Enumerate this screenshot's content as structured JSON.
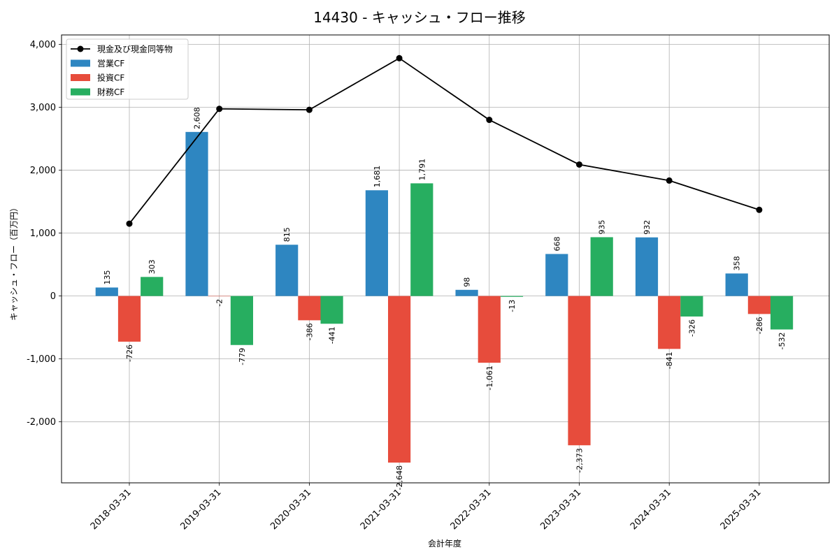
{
  "chart_data": {
    "type": "bar",
    "title": "14430 - キャッシュ・フロー推移",
    "xlabel": "会計年度",
    "ylabel": "キャッシュ・フロー（百万円）",
    "categories": [
      "2018-03-31",
      "2019-03-31",
      "2020-03-31",
      "2021-03-31",
      "2022-03-31",
      "2023-03-31",
      "2024-03-31",
      "2025-03-31"
    ],
    "ylim": [
      -2970,
      4150
    ],
    "yticks": [
      -2000,
      -1000,
      0,
      1000,
      2000,
      3000,
      4000
    ],
    "ytick_labels": [
      "-2,000",
      "-1,000",
      "0",
      "1,000",
      "2,000",
      "3,000",
      "4,000"
    ],
    "grid": true,
    "legend_position": "top-left",
    "series": [
      {
        "name": "営業CF",
        "kind": "bar",
        "color": "#2e86c1",
        "values": [
          135,
          2608,
          815,
          1681,
          98,
          668,
          932,
          358
        ],
        "labels": [
          "135",
          "2,608",
          "815",
          "1,681",
          "98",
          "668",
          "932",
          "358"
        ]
      },
      {
        "name": "投資CF",
        "kind": "bar",
        "color": "#e74c3c",
        "values": [
          -726,
          -2,
          -386,
          -2648,
          -1061,
          -2373,
          -841,
          -286
        ],
        "labels": [
          "-726",
          "-2",
          "-386",
          "-2,648",
          "-1,061",
          "-2,373",
          "-841",
          "-286"
        ]
      },
      {
        "name": "財務CF",
        "kind": "bar",
        "color": "#27ae60",
        "values": [
          303,
          -779,
          -441,
          1791,
          -13,
          935,
          -326,
          -532
        ],
        "labels": [
          "303",
          "-779",
          "-441",
          "1,791",
          "-13",
          "935",
          "-326",
          "-532"
        ]
      },
      {
        "name": "現金及び現金同等物",
        "kind": "line",
        "color": "#000000",
        "values": [
          1150,
          2975,
          2960,
          3780,
          2800,
          2090,
          1835,
          1370
        ]
      }
    ]
  }
}
